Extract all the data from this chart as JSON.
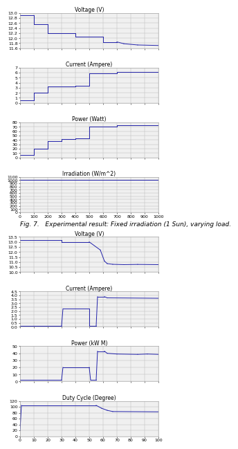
{
  "fig_caption": "Fig. 7.   Experimental result: Fixed irradiation (1 Sun), varying load.",
  "top_plots": [
    {
      "title": "Voltage (V)",
      "ylim": [
        11.6,
        13.0
      ],
      "yticks": [
        11.6,
        11.8,
        12.0,
        12.2,
        12.4,
        12.6,
        12.8,
        13.0
      ],
      "xlim": [
        0,
        1000
      ],
      "xticks": [
        0,
        100,
        200,
        300,
        400,
        500,
        600,
        700,
        800,
        900,
        1000
      ],
      "segments": [
        {
          "x": [
            0,
            100
          ],
          "y": [
            12.9,
            12.9
          ]
        },
        {
          "x": [
            100,
            100
          ],
          "y": [
            12.9,
            12.55
          ]
        },
        {
          "x": [
            100,
            200
          ],
          "y": [
            12.55,
            12.55
          ]
        },
        {
          "x": [
            200,
            200
          ],
          "y": [
            12.55,
            12.2
          ]
        },
        {
          "x": [
            200,
            400
          ],
          "y": [
            12.2,
            12.2
          ]
        },
        {
          "x": [
            400,
            400
          ],
          "y": [
            12.2,
            12.05
          ]
        },
        {
          "x": [
            400,
            600
          ],
          "y": [
            12.05,
            12.05
          ]
        },
        {
          "x": [
            600,
            600
          ],
          "y": [
            12.05,
            11.85
          ]
        },
        {
          "x": [
            600,
            700
          ],
          "y": [
            11.85,
            11.85
          ]
        },
        {
          "x": [
            700,
            750
          ],
          "y": [
            11.85,
            11.78
          ]
        },
        {
          "x": [
            750,
            850
          ],
          "y": [
            11.78,
            11.73
          ]
        },
        {
          "x": [
            850,
            1000
          ],
          "y": [
            11.73,
            11.71
          ]
        }
      ]
    },
    {
      "title": "Current (Ampere)",
      "ylim": [
        0,
        7
      ],
      "yticks": [
        0,
        1,
        2,
        3,
        4,
        5,
        6,
        7
      ],
      "xlim": [
        0,
        1000
      ],
      "xticks": [
        0,
        100,
        200,
        300,
        400,
        500,
        600,
        700,
        800,
        900,
        1000
      ],
      "segments": [
        {
          "x": [
            0,
            100
          ],
          "y": [
            0.5,
            0.5
          ]
        },
        {
          "x": [
            100,
            100
          ],
          "y": [
            0.5,
            2.0
          ]
        },
        {
          "x": [
            100,
            200
          ],
          "y": [
            2.0,
            2.0
          ]
        },
        {
          "x": [
            200,
            200
          ],
          "y": [
            2.0,
            3.2
          ]
        },
        {
          "x": [
            200,
            400
          ],
          "y": [
            3.2,
            3.2
          ]
        },
        {
          "x": [
            400,
            400
          ],
          "y": [
            3.2,
            3.35
          ]
        },
        {
          "x": [
            400,
            500
          ],
          "y": [
            3.35,
            3.35
          ]
        },
        {
          "x": [
            500,
            500
          ],
          "y": [
            3.35,
            5.9
          ]
        },
        {
          "x": [
            500,
            700
          ],
          "y": [
            5.9,
            5.9
          ]
        },
        {
          "x": [
            700,
            700
          ],
          "y": [
            5.9,
            6.2
          ]
        },
        {
          "x": [
            700,
            800
          ],
          "y": [
            6.2,
            6.2
          ]
        },
        {
          "x": [
            800,
            1000
          ],
          "y": [
            6.2,
            6.2
          ]
        }
      ]
    },
    {
      "title": "Power (Watt)",
      "ylim": [
        0,
        80
      ],
      "yticks": [
        0,
        10,
        20,
        30,
        40,
        50,
        60,
        70,
        80
      ],
      "xlim": [
        0,
        1000
      ],
      "xticks": [
        0,
        100,
        200,
        300,
        400,
        500,
        600,
        700,
        800,
        900,
        1000
      ],
      "segments": [
        {
          "x": [
            0,
            100
          ],
          "y": [
            6,
            6
          ]
        },
        {
          "x": [
            100,
            100
          ],
          "y": [
            6,
            20
          ]
        },
        {
          "x": [
            100,
            200
          ],
          "y": [
            20,
            20
          ]
        },
        {
          "x": [
            200,
            200
          ],
          "y": [
            20,
            38
          ]
        },
        {
          "x": [
            200,
            300
          ],
          "y": [
            38,
            38
          ]
        },
        {
          "x": [
            300,
            300
          ],
          "y": [
            38,
            42
          ]
        },
        {
          "x": [
            300,
            400
          ],
          "y": [
            42,
            42
          ]
        },
        {
          "x": [
            400,
            400
          ],
          "y": [
            42,
            44
          ]
        },
        {
          "x": [
            400,
            500
          ],
          "y": [
            44,
            44
          ]
        },
        {
          "x": [
            500,
            500
          ],
          "y": [
            44,
            70
          ]
        },
        {
          "x": [
            500,
            700
          ],
          "y": [
            70,
            70
          ]
        },
        {
          "x": [
            700,
            700
          ],
          "y": [
            70,
            73
          ]
        },
        {
          "x": [
            700,
            800
          ],
          "y": [
            73,
            73
          ]
        },
        {
          "x": [
            800,
            1000
          ],
          "y": [
            73,
            73
          ]
        }
      ]
    },
    {
      "title": "Irradiation (W/m^2)",
      "ylim": [
        0,
        1100
      ],
      "yticks": [
        0,
        100,
        200,
        300,
        400,
        500,
        600,
        700,
        800,
        900,
        1000,
        1100
      ],
      "xlim": [
        0,
        1000
      ],
      "xticks": [
        0,
        100,
        200,
        300,
        400,
        500,
        600,
        700,
        800,
        900,
        1000
      ],
      "segments": [
        {
          "x": [
            0,
            1000
          ],
          "y": [
            1000,
            1000
          ]
        }
      ]
    }
  ],
  "bottom_plots": [
    {
      "title": "Voltage (V)",
      "ylim": [
        10.0,
        13.5
      ],
      "yticks": [
        10.0,
        10.5,
        11.0,
        11.5,
        12.0,
        12.5,
        13.0,
        13.5
      ],
      "xlim": [
        0,
        100
      ],
      "xticks": [
        0,
        10,
        20,
        30,
        40,
        50,
        60,
        70,
        80,
        90,
        100
      ],
      "segments": [
        {
          "x": [
            0,
            30
          ],
          "y": [
            13.2,
            13.2
          ]
        },
        {
          "x": [
            30,
            30
          ],
          "y": [
            13.2,
            13.0
          ]
        },
        {
          "x": [
            30,
            50
          ],
          "y": [
            13.0,
            13.0
          ]
        },
        {
          "x": [
            50,
            58
          ],
          "y": [
            13.0,
            12.2
          ]
        },
        {
          "x": [
            58,
            61
          ],
          "y": [
            12.2,
            11.1
          ]
        },
        {
          "x": [
            61,
            63
          ],
          "y": [
            11.1,
            10.85
          ]
        },
        {
          "x": [
            63,
            67
          ],
          "y": [
            10.85,
            10.78
          ]
        },
        {
          "x": [
            67,
            75
          ],
          "y": [
            10.78,
            10.75
          ]
        },
        {
          "x": [
            75,
            85
          ],
          "y": [
            10.75,
            10.77
          ]
        },
        {
          "x": [
            85,
            100
          ],
          "y": [
            10.77,
            10.75
          ]
        }
      ]
    },
    {
      "title": "Current (Ampere)",
      "ylim": [
        0.0,
        4.5
      ],
      "yticks": [
        0.0,
        0.5,
        1.0,
        1.5,
        2.0,
        2.5,
        3.0,
        3.5,
        4.0,
        4.5
      ],
      "xlim": [
        0,
        100
      ],
      "xticks": [
        0,
        10,
        20,
        30,
        40,
        50,
        60,
        70,
        80,
        90,
        100
      ],
      "segments": [
        {
          "x": [
            0,
            30
          ],
          "y": [
            0.1,
            0.1
          ]
        },
        {
          "x": [
            30,
            31
          ],
          "y": [
            0.1,
            2.3
          ]
        },
        {
          "x": [
            31,
            50
          ],
          "y": [
            2.3,
            2.3
          ]
        },
        {
          "x": [
            50,
            50
          ],
          "y": [
            2.3,
            0.1
          ]
        },
        {
          "x": [
            50,
            55
          ],
          "y": [
            0.1,
            0.1
          ]
        },
        {
          "x": [
            55,
            56
          ],
          "y": [
            0.1,
            3.85
          ]
        },
        {
          "x": [
            56,
            61
          ],
          "y": [
            3.85,
            3.85
          ]
        },
        {
          "x": [
            61,
            63
          ],
          "y": [
            3.85,
            3.7
          ]
        },
        {
          "x": [
            63,
            100
          ],
          "y": [
            3.7,
            3.65
          ]
        }
      ]
    },
    {
      "title": "Power (kW M)",
      "ylim": [
        0,
        50
      ],
      "yticks": [
        0,
        10,
        20,
        30,
        40,
        50
      ],
      "xlim": [
        0,
        100
      ],
      "xticks": [
        0,
        10,
        20,
        30,
        40,
        50,
        60,
        70,
        80,
        90,
        100
      ],
      "segments": [
        {
          "x": [
            0,
            30
          ],
          "y": [
            2,
            2
          ]
        },
        {
          "x": [
            30,
            31
          ],
          "y": [
            2,
            20
          ]
        },
        {
          "x": [
            31,
            50
          ],
          "y": [
            20,
            20
          ]
        },
        {
          "x": [
            50,
            51
          ],
          "y": [
            20,
            2
          ]
        },
        {
          "x": [
            51,
            55
          ],
          "y": [
            2,
            2
          ]
        },
        {
          "x": [
            55,
            56
          ],
          "y": [
            2,
            43
          ]
        },
        {
          "x": [
            56,
            61
          ],
          "y": [
            43,
            43
          ]
        },
        {
          "x": [
            61,
            63
          ],
          "y": [
            43,
            40
          ]
        },
        {
          "x": [
            63,
            70
          ],
          "y": [
            40,
            39
          ]
        },
        {
          "x": [
            70,
            85
          ],
          "y": [
            39,
            38.5
          ]
        },
        {
          "x": [
            85,
            92
          ],
          "y": [
            38.5,
            39
          ]
        },
        {
          "x": [
            92,
            100
          ],
          "y": [
            39,
            38.5
          ]
        }
      ]
    },
    {
      "title": "Duty Cycle (Degree)",
      "ylim": [
        0,
        120
      ],
      "yticks": [
        0,
        20,
        40,
        60,
        80,
        100,
        120
      ],
      "xlim": [
        0,
        100
      ],
      "xticks": [
        0,
        10,
        20,
        30,
        40,
        50,
        60,
        70,
        80,
        90,
        100
      ],
      "segments": [
        {
          "x": [
            0,
            1
          ],
          "y": [
            20,
            105
          ]
        },
        {
          "x": [
            1,
            55
          ],
          "y": [
            105,
            105
          ]
        },
        {
          "x": [
            55,
            59
          ],
          "y": [
            105,
            95
          ]
        },
        {
          "x": [
            59,
            63
          ],
          "y": [
            95,
            88
          ]
        },
        {
          "x": [
            63,
            67
          ],
          "y": [
            88,
            84
          ]
        },
        {
          "x": [
            67,
            100
          ],
          "y": [
            84,
            83
          ]
        }
      ]
    }
  ],
  "line_color": "#2222AA",
  "grid_color": "#BBBBBB",
  "bg_color": "#F0F0F0",
  "title_fontsize": 5.5,
  "tick_fontsize": 4.5,
  "caption_fontsize": 6.5
}
